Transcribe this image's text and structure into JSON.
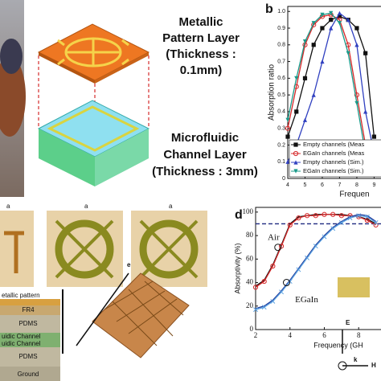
{
  "figure": {
    "panel_a": {
      "metallic": [
        "Metallic",
        "Pattern Layer",
        "(Thickness :",
        "0.1mm)"
      ],
      "microfluidic": [
        "Microfluidic",
        "Channel Layer",
        "(Thickness : 3mm)"
      ]
    },
    "panel_c": {
      "dims": [
        "a",
        "a",
        "a"
      ],
      "stack": [
        "etallic pattern",
        "FR4",
        "PDMS",
        "uidic Channel",
        "uidic Channel",
        "PDMS",
        "Ground"
      ]
    },
    "panel_e_label": "e",
    "field_labels": [
      "E",
      "k",
      "H"
    ]
  },
  "chart_data": [
    {
      "type": "line",
      "panel_label": "b",
      "x_label": "Frequen",
      "y_label": "Absorption ratio",
      "x": [
        4,
        4.5,
        5,
        5.5,
        6,
        6.5,
        7,
        7.5,
        8,
        8.5,
        9
      ],
      "xlim": [
        4,
        9.4
      ],
      "xticks": [
        4,
        5,
        6,
        7,
        8,
        9
      ],
      "ylim": [
        0,
        1.03
      ],
      "yticks": [
        0,
        0.1,
        0.2,
        0.3,
        0.4,
        0.5,
        0.6,
        0.7,
        0.8,
        0.9,
        {
          "value": 1,
          "label": "1.0"
        }
      ],
      "legend": "lower left",
      "series": [
        {
          "name": "Empty channels (Meas",
          "color": "#111111",
          "marker": "square",
          "values": [
            0.25,
            0.4,
            0.6,
            0.8,
            0.9,
            0.95,
            0.97,
            0.95,
            0.9,
            0.75,
            0.25
          ]
        },
        {
          "name": "EGaIn channels (Meas",
          "color": "#d62728",
          "marker": "circle",
          "values": [
            0.3,
            0.55,
            0.8,
            0.92,
            0.97,
            0.98,
            0.95,
            0.8,
            0.5,
            0.2,
            0.1
          ]
        },
        {
          "name": "Empty channels (Sim.)",
          "color": "#3040c0",
          "marker": "triangle",
          "values": [
            0.1,
            0.2,
            0.35,
            0.5,
            0.7,
            0.9,
            0.99,
            0.95,
            0.8,
            0.4,
            0.15
          ]
        },
        {
          "name": "EGaIn channels (Sim.)",
          "color": "#1a9a8a",
          "marker": "triangle-down",
          "values": [
            0.35,
            0.6,
            0.82,
            0.93,
            0.98,
            0.99,
            0.93,
            0.75,
            0.45,
            0.15,
            0.05
          ]
        }
      ]
    },
    {
      "type": "line",
      "panel_label": "d",
      "x_label": "Frequency (GH",
      "y_label": "Absorptivity (%)",
      "x": [
        2,
        2.5,
        3,
        3.5,
        4,
        4.5,
        5,
        5.5,
        6,
        6.5,
        7,
        7.5,
        8,
        8.5,
        9
      ],
      "xlim": [
        2,
        9.3
      ],
      "xticks": [
        2,
        4,
        6,
        8
      ],
      "ylim": [
        0,
        104
      ],
      "yticks": [
        0,
        20,
        40,
        60,
        80,
        100
      ],
      "reference_line": 90,
      "annotations": [
        "Air",
        "EGaIn"
      ],
      "series": [
        {
          "color": "#111111",
          "marker": "none",
          "values": [
            37,
            42,
            55,
            72,
            90,
            96,
            97,
            98,
            98,
            98,
            98,
            97,
            96,
            94,
            90
          ]
        },
        {
          "color": "#d62728",
          "marker": "circle",
          "values": [
            36,
            41,
            54,
            71,
            89,
            95,
            97,
            97,
            98,
            98,
            97,
            97,
            96,
            93,
            89
          ]
        },
        {
          "color": "#1f3a9a",
          "marker": "none",
          "values": [
            18,
            20,
            25,
            33,
            42,
            52,
            62,
            72,
            80,
            87,
            92,
            96,
            98,
            97,
            92
          ]
        },
        {
          "color": "#5aa0e0",
          "marker": "cross",
          "values": [
            17,
            19,
            24,
            32,
            41,
            51,
            61,
            71,
            79,
            86,
            91,
            95,
            97,
            96,
            91
          ]
        }
      ]
    }
  ]
}
